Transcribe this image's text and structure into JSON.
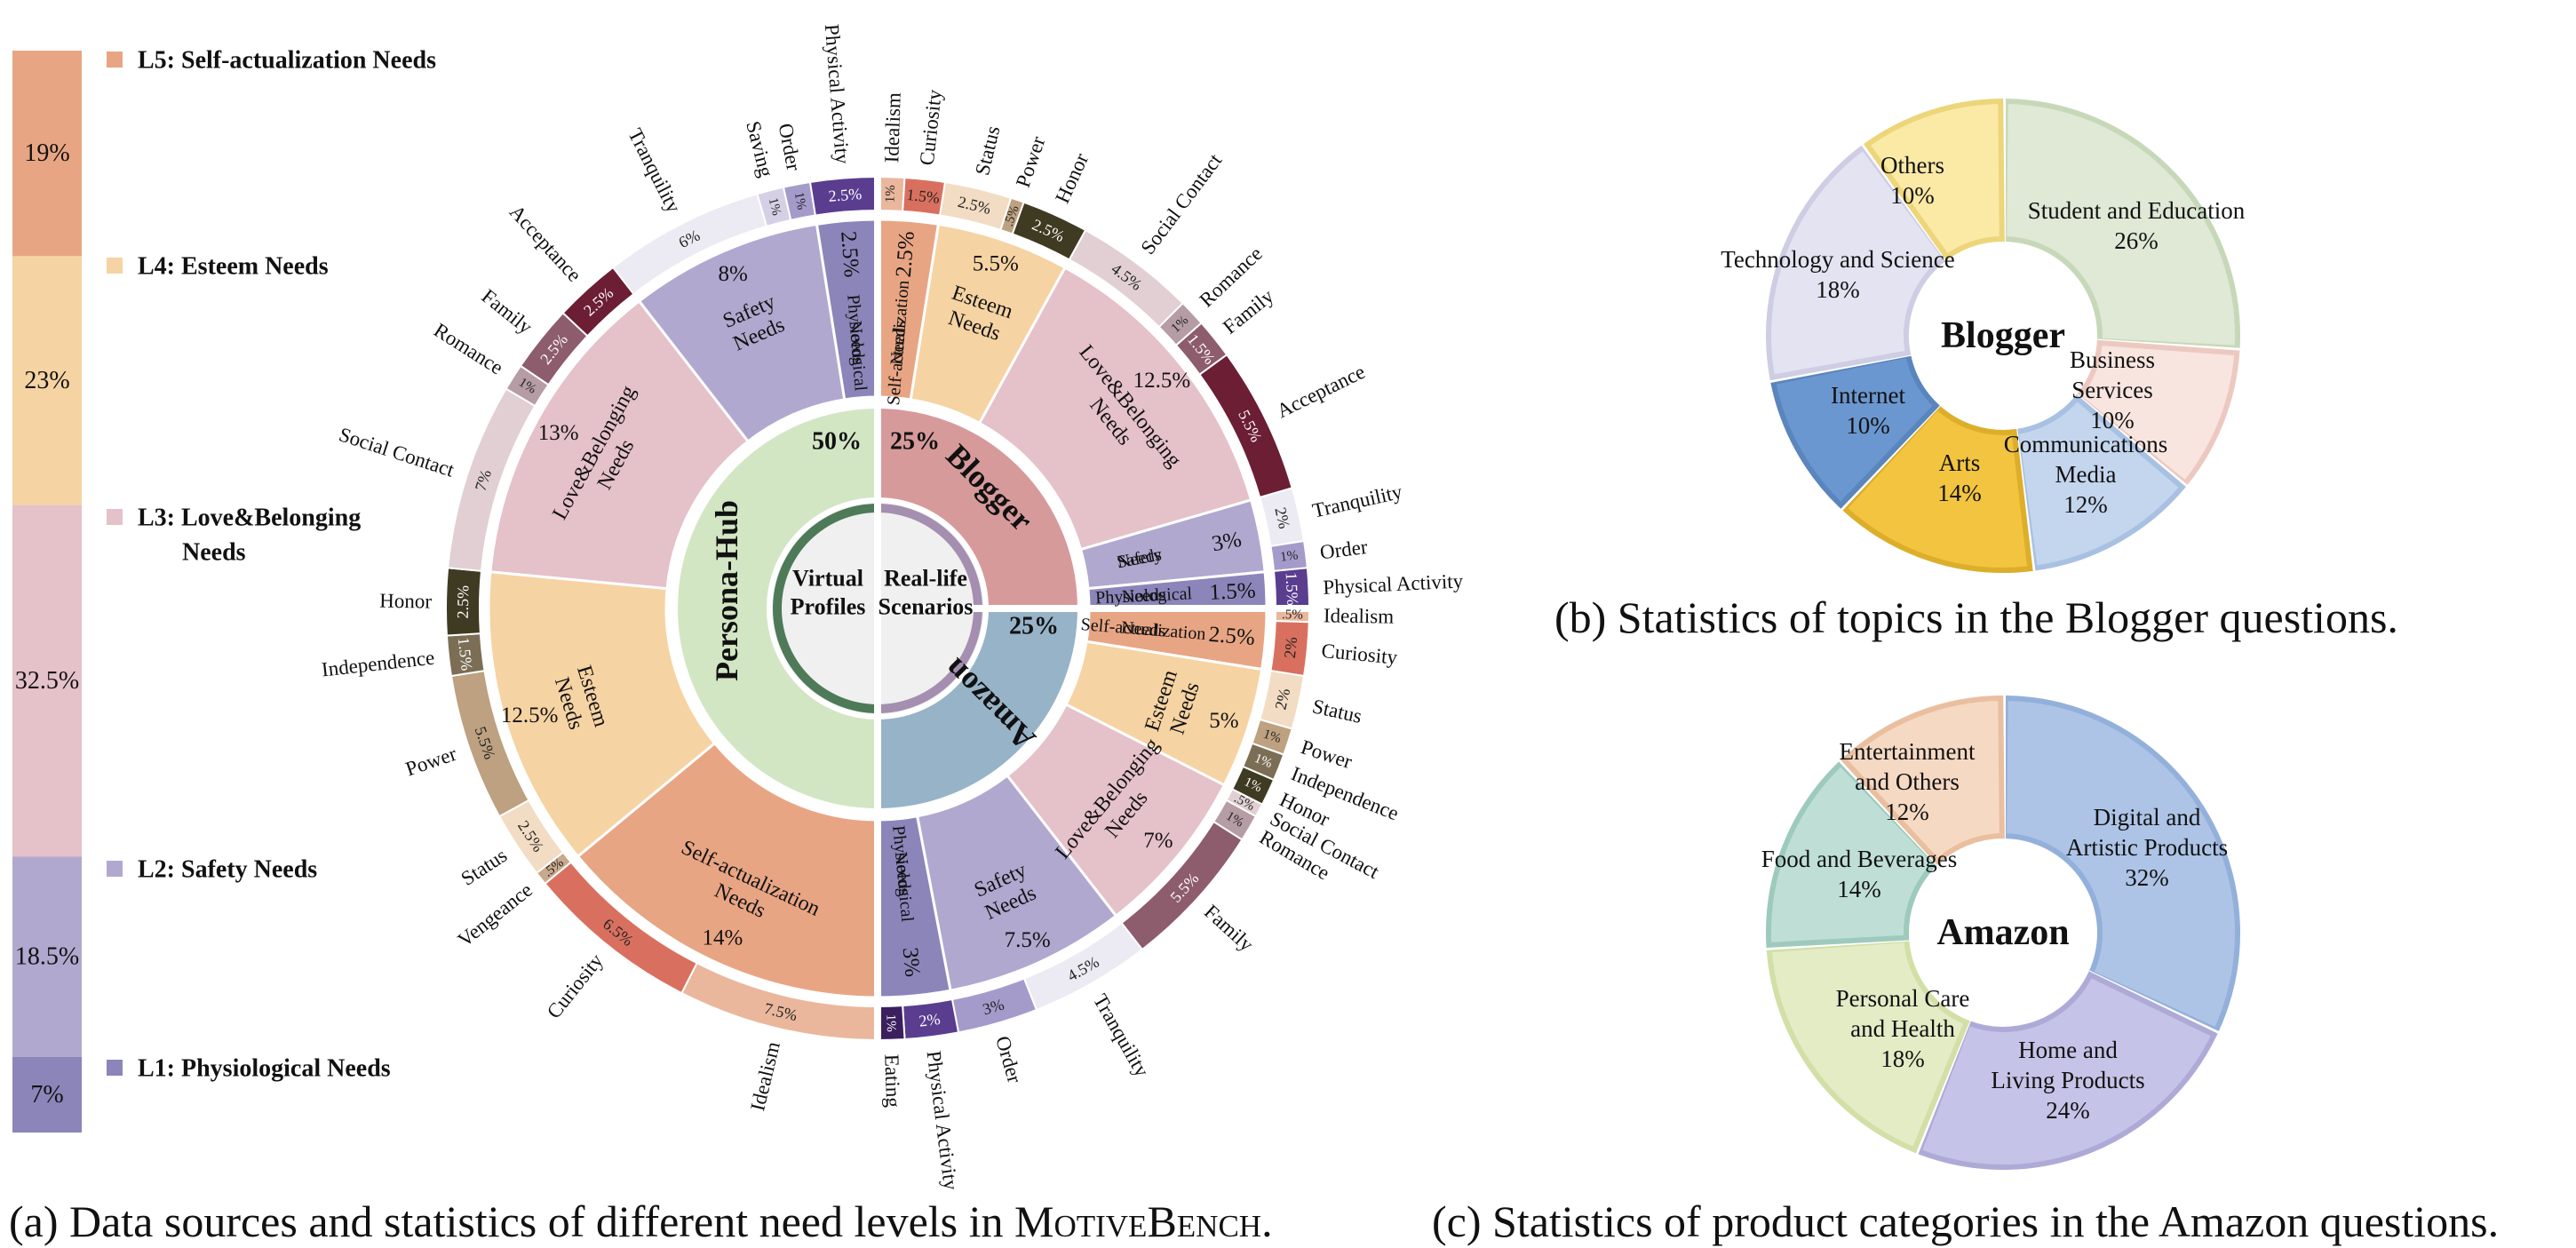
{
  "chart_data": [
    {
      "type": "sunburst",
      "caption_prefix": "(a) Data sources and statistics of different need levels in ",
      "caption_bench": "MotiveBench",
      "caption_suffix": ".",
      "levels_bar": [
        {
          "label": "L5: Self-actualization Needs",
          "value": "19%",
          "pct": 19,
          "color": "#e8a584"
        },
        {
          "label": "L4: Esteem Needs",
          "value": "23%",
          "pct": 23,
          "color": "#f6d3a3"
        },
        {
          "label": "L3: Love&Belonging Needs",
          "line1": "L3: Love&Belonging",
          "line2": "Needs",
          "value": "32.5%",
          "pct": 32.5,
          "color": "#e5c1c9"
        },
        {
          "label": "L2: Safety Needs",
          "value": "18.5%",
          "pct": 18.5,
          "color": "#b1a8cf"
        },
        {
          "label": "L1: Physiological Needs",
          "value": "7%",
          "pct": 7,
          "color": "#8c85ba"
        }
      ],
      "center": {
        "left": "Virtual Profiles",
        "left_l1": "Virtual",
        "left_l2": "Profiles",
        "right": "Real-life Scenarios",
        "right_l1": "Real-life",
        "right_l2": "Scenarios"
      },
      "sources": [
        {
          "name": "Persona-Hub",
          "value": "50%",
          "start": 180,
          "sweep": 180,
          "color": "#d3e6c4"
        },
        {
          "name": "Blogger",
          "value": "25%",
          "start": 0,
          "sweep": 90,
          "color": "#d79a9b"
        },
        {
          "name": "Amazon",
          "value": "25%",
          "start": 90,
          "sweep": 90,
          "color": "#97b3c7"
        }
      ],
      "level_ring": [
        {
          "name": "Self-actualization Needs",
          "value": "2.5%",
          "start": 0,
          "sweep": 9,
          "color": "#e8a584"
        },
        {
          "name": "Esteem Needs",
          "value": "5.5%",
          "start": 9,
          "sweep": 19.8,
          "color": "#f6d3a3"
        },
        {
          "name": "Love&Belonging Needs",
          "value": "12.5%",
          "start": 28.8,
          "sweep": 45,
          "color": "#e5c1c9"
        },
        {
          "name": "Safety Needs",
          "value": "3%",
          "start": 73.8,
          "sweep": 10.8,
          "color": "#b1a8cf"
        },
        {
          "name": "Physiological Needs",
          "value": "1.5%",
          "start": 84.6,
          "sweep": 5.4,
          "color": "#8c85ba"
        },
        {
          "name": "Self-actualization Needs",
          "value": "2.5%",
          "start": 90,
          "sweep": 9,
          "color": "#e8a584"
        },
        {
          "name": "Esteem Needs",
          "value": "5%",
          "start": 99,
          "sweep": 18,
          "color": "#f6d3a3"
        },
        {
          "name": "Love&Belonging Needs",
          "value": "7%",
          "start": 117,
          "sweep": 25.2,
          "color": "#e5c1c9"
        },
        {
          "name": "Safety Needs",
          "value": "7.5%",
          "start": 142.2,
          "sweep": 27,
          "color": "#b1a8cf"
        },
        {
          "name": "Physiological Needs",
          "value": "3%",
          "start": 169.2,
          "sweep": 10.8,
          "color": "#8c85ba"
        },
        {
          "name": "Self-actualization Needs",
          "value": "14%",
          "start": 180,
          "sweep": 50.4,
          "color": "#e8a584"
        },
        {
          "name": "Esteem Needs",
          "value": "12.5%",
          "start": 230.4,
          "sweep": 45,
          "color": "#f6d3a3"
        },
        {
          "name": "Love&Belonging Needs",
          "value": "13%",
          "start": 275.4,
          "sweep": 46.8,
          "color": "#e5c1c9"
        },
        {
          "name": "Safety Needs",
          "value": "8%",
          "start": 322.2,
          "sweep": 28.8,
          "color": "#b1a8cf"
        },
        {
          "name": "Physiological Needs",
          "value": "2.5%",
          "start": 351,
          "sweep": 9,
          "color": "#8c85ba"
        }
      ],
      "motives": [
        {
          "name": "Idealism",
          "value": "1%",
          "start": 0,
          "sweep": 3.6,
          "color": "#eab79d"
        },
        {
          "name": "Curiosity",
          "value": "1.5%",
          "start": 3.6,
          "sweep": 5.4,
          "color": "#d9705f"
        },
        {
          "name": "Status",
          "value": "2.5%",
          "start": 9,
          "sweep": 9,
          "color": "#f2dcc3"
        },
        {
          "name": "Power",
          "value": ".5%",
          "start": 18,
          "sweep": 1.8,
          "color": "#bda180"
        },
        {
          "name": "Honor",
          "value": "2.5%",
          "start": 19.8,
          "sweep": 9,
          "color": "#3f3a22"
        },
        {
          "name": "Social Contact",
          "value": "4.5%",
          "start": 28.8,
          "sweep": 16.2,
          "color": "#e1cfd3"
        },
        {
          "name": "Romance",
          "value": "1%",
          "start": 45,
          "sweep": 3.6,
          "color": "#b69ca4"
        },
        {
          "name": "Family",
          "value": "1.5%",
          "start": 48.6,
          "sweep": 5.4,
          "color": "#8d5c6d"
        },
        {
          "name": "Acceptance",
          "value": "5.5%",
          "start": 54,
          "sweep": 19.8,
          "color": "#6b1e34"
        },
        {
          "name": "Tranquility",
          "value": "2%",
          "start": 73.8,
          "sweep": 7.2,
          "color": "#eceaf2"
        },
        {
          "name": "Order",
          "value": "1%",
          "start": 81,
          "sweep": 3.6,
          "color": "#a59bcb"
        },
        {
          "name": "Physical Activity",
          "value": "1.5%",
          "start": 84.6,
          "sweep": 5.4,
          "color": "#5a3d8f"
        },
        {
          "name": "Idealism",
          "value": ".5%",
          "start": 90,
          "sweep": 1.8,
          "color": "#eab79d"
        },
        {
          "name": "Curiosity",
          "value": "2%",
          "start": 91.8,
          "sweep": 7.2,
          "color": "#d9705f"
        },
        {
          "name": "Status",
          "value": "2%",
          "start": 99,
          "sweep": 7.2,
          "color": "#f2dcc3"
        },
        {
          "name": "Power",
          "value": "1%",
          "start": 106.2,
          "sweep": 3.6,
          "color": "#bda180"
        },
        {
          "name": "Independence",
          "value": "1%",
          "start": 109.8,
          "sweep": 3.6,
          "color": "#7b6e55"
        },
        {
          "name": "Honor",
          "value": "1%",
          "start": 113.4,
          "sweep": 3.6,
          "color": "#3f3a22"
        },
        {
          "name": "Social Contact",
          "value": ".5%",
          "start": 117,
          "sweep": 1.8,
          "color": "#e1cfd3"
        },
        {
          "name": "Romance",
          "value": "1%",
          "start": 118.8,
          "sweep": 3.6,
          "color": "#b69ca4"
        },
        {
          "name": "Family",
          "value": "5.5%",
          "start": 122.4,
          "sweep": 19.8,
          "color": "#8d5c6d"
        },
        {
          "name": "Tranquility",
          "value": "4.5%",
          "start": 142.2,
          "sweep": 16.2,
          "color": "#eceaf2"
        },
        {
          "name": "Order",
          "value": "3%",
          "start": 158.4,
          "sweep": 10.8,
          "color": "#a59bcb"
        },
        {
          "name": "Physical Activity",
          "value": "2%",
          "start": 169.2,
          "sweep": 7.2,
          "color": "#5a3d8f"
        },
        {
          "name": "Eating",
          "value": "1%",
          "start": 176.4,
          "sweep": 3.6,
          "color": "#3b1f5e"
        },
        {
          "name": "Idealism",
          "value": "7.5%",
          "start": 180,
          "sweep": 27,
          "color": "#eab79d"
        },
        {
          "name": "Curiosity",
          "value": "6.5%",
          "start": 207,
          "sweep": 23.4,
          "color": "#d9705f"
        },
        {
          "name": "Vengeance",
          "value": ".5%",
          "start": 230.4,
          "sweep": 1.8,
          "color": "#c9a98c"
        },
        {
          "name": "Status",
          "value": "2.5%",
          "start": 232.2,
          "sweep": 9,
          "color": "#f2dcc3"
        },
        {
          "name": "Power",
          "value": "5.5%",
          "start": 241.2,
          "sweep": 19.8,
          "color": "#bda180"
        },
        {
          "name": "Independence",
          "value": "1.5%",
          "start": 261,
          "sweep": 5.4,
          "color": "#7b6e55"
        },
        {
          "name": "Honor",
          "value": "2.5%",
          "start": 266.4,
          "sweep": 9,
          "color": "#3f3a22"
        },
        {
          "name": "Social Contact",
          "value": "7%",
          "start": 275.4,
          "sweep": 25.2,
          "color": "#e1cfd3"
        },
        {
          "name": "Romance",
          "value": "1%",
          "start": 300.6,
          "sweep": 3.6,
          "color": "#b69ca4"
        },
        {
          "name": "Family",
          "value": "2.5%",
          "start": 304.2,
          "sweep": 9,
          "color": "#8d5c6d"
        },
        {
          "name": "Acceptance",
          "value": "2.5%",
          "start": 313.2,
          "sweep": 9,
          "color": "#6b1e34"
        },
        {
          "name": "Tranquility",
          "value": "6%",
          "start": 322.2,
          "sweep": 21.6,
          "color": "#eceaf2"
        },
        {
          "name": "Saving",
          "value": "1%",
          "start": 343.8,
          "sweep": 3.6,
          "color": "#d6d0e6"
        },
        {
          "name": "Order",
          "value": "1%",
          "start": 347.4,
          "sweep": 3.6,
          "color": "#a59bcb"
        },
        {
          "name": "Physical Activity",
          "value": "2.5%",
          "start": 351,
          "sweep": 9,
          "color": "#5a3d8f"
        }
      ]
    },
    {
      "type": "pie",
      "title": "Blogger",
      "caption": "(b) Statistics of topics in the Blogger questions.",
      "slices": [
        {
          "name": "Student and Education",
          "value": 26,
          "label": "26%",
          "color": "#dfe9d6",
          "edge": "#c7d8b9"
        },
        {
          "name": "Business Services",
          "line1": "Business",
          "line2": "Services",
          "value": 10,
          "label": "10%",
          "color": "#f8e5df",
          "edge": "#ecc9c0"
        },
        {
          "name": "Communications Media",
          "line1": "Communications",
          "line2": "Media",
          "value": 12,
          "label": "12%",
          "color": "#c4d6ee",
          "edge": "#a8c1e2"
        },
        {
          "name": "Arts",
          "value": 14,
          "label": "14%",
          "color": "#f2c440",
          "edge": "#dcae2a"
        },
        {
          "name": "Internet",
          "value": 10,
          "label": "10%",
          "color": "#6b97d0",
          "edge": "#5a85bd"
        },
        {
          "name": "Technology and Science",
          "value": 18,
          "label": "18%",
          "color": "#e4e3f1",
          "edge": "#cfcde4"
        },
        {
          "name": "Others",
          "value": 10,
          "label": "10%",
          "color": "#fbe9a6",
          "edge": "#edd57a"
        }
      ]
    },
    {
      "type": "pie",
      "title": "Amazon",
      "caption": "(c) Statistics of product categories in the Amazon questions.",
      "slices": [
        {
          "name": "Digital and Artistic Products",
          "line1": "Digital and",
          "line2": "Artistic Products",
          "value": 32,
          "label": "32%",
          "color": "#adc4e6",
          "edge": "#93b0da"
        },
        {
          "name": "Home and Living Products",
          "line1": "Home and",
          "line2": "Living Products",
          "value": 24,
          "label": "24%",
          "color": "#c5c3e7",
          "edge": "#aeaad7"
        },
        {
          "name": "Personal Care and Health",
          "line1": "Personal Care",
          "line2": "and Health",
          "value": 18,
          "label": "18%",
          "color": "#e4ecc6",
          "edge": "#d2dfa6"
        },
        {
          "name": "Food and Beverages",
          "value": 14,
          "label": "14%",
          "color": "#bfdfd6",
          "edge": "#9ecabd"
        },
        {
          "name": "Entertainment and Others",
          "line1": "Entertainment",
          "line2": "and Others",
          "value": 12,
          "label": "12%",
          "color": "#f6d9c3",
          "edge": "#e9bf9f"
        }
      ]
    }
  ]
}
